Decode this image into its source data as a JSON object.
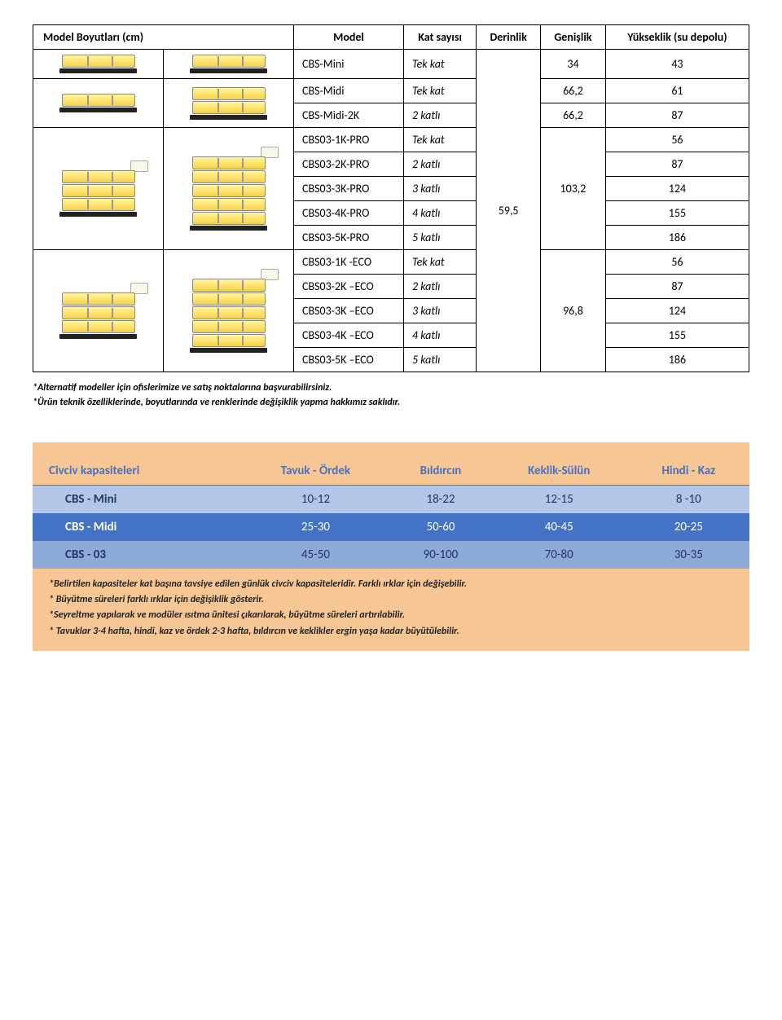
{
  "dim_table": {
    "title": "Model Boyutları  (cm)",
    "headers": {
      "model": "Model",
      "kat": "Kat sayısı",
      "derinlik": "Derinlik",
      "genislik": "Genişlik",
      "yukseklik": "Yükseklik (su depolu)"
    },
    "derinlik_value": "59,5",
    "groups": [
      {
        "genislik": "34",
        "rows": [
          {
            "model": "CBS-Mini",
            "kat": "Tek kat",
            "yukseklik": "43"
          }
        ]
      },
      {
        "genislik": "66,2",
        "rows": [
          {
            "model": "CBS-Midi",
            "kat": "Tek kat",
            "yukseklik": "61"
          }
        ]
      },
      {
        "genislik": "66,2",
        "rows": [
          {
            "model": "CBS-Midi-2K",
            "kat": "2 katlı",
            "yukseklik": "87"
          }
        ]
      },
      {
        "genislik": "103,2",
        "rows": [
          {
            "model": "CBS03-1K-PRO",
            "kat": "Tek kat",
            "yukseklik": "56"
          },
          {
            "model": "CBS03-2K-PRO",
            "kat": "2 katlı",
            "yukseklik": "87"
          },
          {
            "model": "CBS03-3K-PRO",
            "kat": "3 katlı",
            "yukseklik": "124"
          },
          {
            "model": "CBS03-4K-PRO",
            "kat": "4 katlı",
            "yukseklik": "155"
          },
          {
            "model": "CBS03-5K-PRO",
            "kat": "5 katlı",
            "yukseklik": "186"
          }
        ]
      },
      {
        "genislik": "96,8",
        "rows": [
          {
            "model": "CBS03-1K -ECO",
            "kat": "Tek kat",
            "yukseklik": "56"
          },
          {
            "model": "CBS03-2K –ECO",
            "kat": "2 katlı",
            "yukseklik": "87"
          },
          {
            "model": "CBS03-3K –ECO",
            "kat": "3 katlı",
            "yukseklik": "124"
          },
          {
            "model": "CBS03-4K –ECO",
            "kat": "4 katlı",
            "yukseklik": "155"
          },
          {
            "model": "CBS03-5K –ECO",
            "kat": "5 katlı",
            "yukseklik": "186"
          }
        ]
      }
    ]
  },
  "notes": {
    "line1": "*Alternatif modeller için ofislerimize ve satış noktalarına başvurabilirsiniz.",
    "line2": "*Ürün teknik özelliklerinde, boyutlarında ve renklerinde değişiklik yapma hakkımız saklıdır."
  },
  "capacity": {
    "headers": [
      "Civciv kapasiteleri",
      "Tavuk - Ördek",
      "Bıldırcın",
      "Keklik-Sülün",
      "Hindi - Kaz"
    ],
    "rows": [
      {
        "class": "a",
        "cells": [
          "CBS - Mini",
          "10-12",
          "18-22",
          "12-15",
          "8 -10"
        ]
      },
      {
        "class": "b",
        "cells": [
          "CBS - Midi",
          "25-30",
          "50-60",
          "40-45",
          "20-25"
        ]
      },
      {
        "class": "c",
        "cells": [
          "CBS - 03",
          "45-50",
          "90-100",
          "70-80",
          "30-35"
        ]
      }
    ],
    "notes": [
      "*Belirtilen kapasiteler kat başına tavsiye edilen günlük civciv kapasiteleridir. Farklı ırklar için değişebilir.",
      "* Büyütme süreleri farklı ırklar için  değişiklik gösterir.",
      "*Seyreltme yapılarak ve modüler ısıtma ünitesi çıkarılarak, büyütme süreleri artırılabilir.",
      "* Tavuklar 3-4 hafta, hindi, kaz ve ördek 2-3 hafta, bıldırcın ve keklikler ergin yaşa kadar büyütülebilir."
    ]
  },
  "colors": {
    "capacity_bg": "#f7c695",
    "header_text": "#4472c4",
    "row_a": "#b4c6e7",
    "row_b": "#4472c4",
    "row_c": "#8eaadb"
  }
}
